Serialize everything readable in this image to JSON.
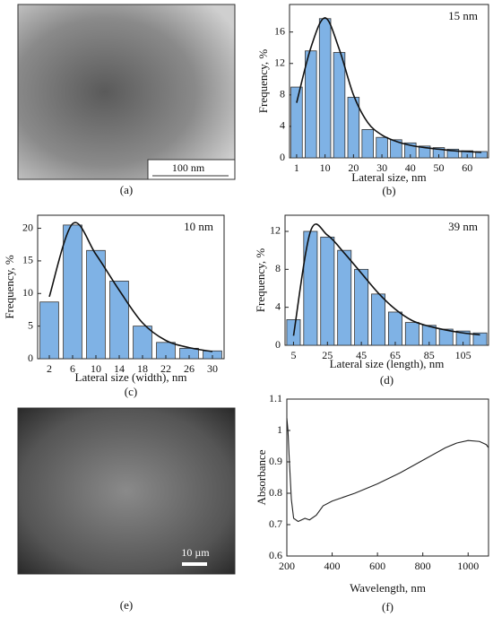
{
  "images": [
    {
      "scale_bar": "100 nm",
      "caption": "(a)"
    },
    {
      "scale_bar": "10 µm",
      "caption": "(e)"
    }
  ],
  "chart_data": [
    {
      "type": "bar",
      "caption": "(b)",
      "annotation": "15 nm",
      "ylabel": "Frequency, %",
      "xlabel": "Lateral size, nm",
      "categories": [
        "1",
        null,
        "10",
        null,
        "20",
        null,
        "30",
        null,
        "40",
        null,
        "50",
        null,
        "60",
        null
      ],
      "values": [
        9,
        13.6,
        17.7,
        13.4,
        7.7,
        3.6,
        2.6,
        2.3,
        1.9,
        1.5,
        1.3,
        1.1,
        0.9,
        0.8
      ],
      "fit_values": [
        7,
        14,
        17.8,
        13.8,
        8,
        4.5,
        2.9,
        2.1,
        1.6,
        1.3,
        1.1,
        0.9,
        0.8,
        0.7
      ],
      "color": "#7fb2e5",
      "ylim": [
        0,
        19.5
      ],
      "yticks": [
        0,
        4,
        8,
        12,
        16
      ]
    },
    {
      "type": "bar",
      "caption": "(c)",
      "annotation": "10 nm",
      "ylabel": "Frequency, %",
      "xlabel": "Lateral size (width), nm",
      "categories": [
        "2",
        "6",
        "10",
        "14",
        "18",
        "22",
        "26",
        "30"
      ],
      "values": [
        8.7,
        20.5,
        16.6,
        11.9,
        5,
        2.5,
        1.6,
        1.2
      ],
      "fit_values": [
        9.5,
        20.7,
        16,
        10.5,
        5.5,
        2.8,
        1.7,
        1.1
      ],
      "color": "#7fb2e5",
      "ylim": [
        0,
        22
      ],
      "yticks": [
        0,
        5,
        10,
        15,
        20
      ]
    },
    {
      "type": "bar",
      "caption": "(d)",
      "annotation": "39 nm",
      "ylabel": "Frequency, %",
      "xlabel": "Lateral size (length), nm",
      "categories": [
        "5",
        null,
        "25",
        null,
        "45",
        null,
        "65",
        null,
        "85",
        null,
        "105",
        null
      ],
      "values": [
        2.7,
        12,
        11.4,
        10,
        8,
        5.4,
        3.5,
        2.4,
        2.1,
        1.7,
        1.5,
        1.3
      ],
      "fit_values": [
        1,
        12,
        11.6,
        9.7,
        7.6,
        5.5,
        3.8,
        2.6,
        2,
        1.6,
        1.3,
        1.1
      ],
      "color": "#7fb2e5",
      "ylim": [
        0,
        13.7
      ],
      "yticks": [
        0,
        4,
        8,
        12
      ]
    },
    {
      "type": "line",
      "caption": "(f)",
      "ylabel": "Absorbance",
      "xlabel": "Wavelength, nm",
      "x": [
        200,
        205,
        210,
        215,
        220,
        230,
        250,
        280,
        300,
        330,
        360,
        400,
        500,
        600,
        700,
        800,
        900,
        950,
        1000,
        1050,
        1080,
        1090
      ],
      "values": [
        1.04,
        1.0,
        0.92,
        0.85,
        0.78,
        0.72,
        0.71,
        0.72,
        0.715,
        0.73,
        0.76,
        0.775,
        0.8,
        0.83,
        0.865,
        0.905,
        0.945,
        0.96,
        0.968,
        0.965,
        0.955,
        0.945
      ],
      "color": "#222222",
      "xlim": [
        200,
        1090
      ],
      "ylim": [
        0.6,
        1.1
      ],
      "xticks": [
        200,
        400,
        600,
        800,
        1000
      ],
      "yticks": [
        0.6,
        0.7,
        0.8,
        0.9,
        1,
        1.1
      ]
    }
  ]
}
